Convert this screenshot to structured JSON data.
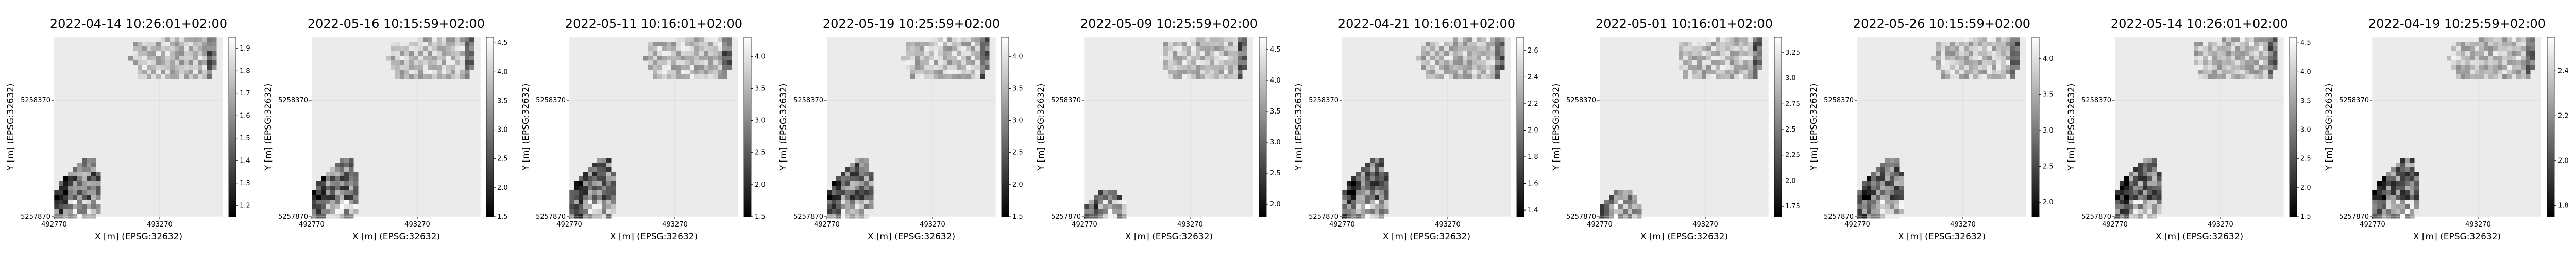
{
  "figure": {
    "colors": {
      "axes_face": "#ebebeb",
      "grid": "#d8d8d8",
      "axis_line": "#000000",
      "text": "#000000"
    },
    "colormap": "greys_r",
    "axis_xlabel": "X [m] (EPSG:32632)",
    "axis_ylabel": "Y [m] (EPSG:32632)",
    "xtick_labels": [
      "492770",
      "493270"
    ],
    "ytick_labels": [
      "5257870",
      "5258370"
    ]
  },
  "chart_data": [
    {
      "type": "heatmap",
      "title": "2022-04-14 10:26:01+02:00",
      "xlabel": "X [m] (EPSG:32632)",
      "ylabel": "Y [m] (EPSG:32632)",
      "xticks": [
        492770,
        493270
      ],
      "yticks": [
        5257870,
        5258370
      ],
      "colorbar_range": [
        1.15,
        1.95
      ],
      "colorbar_ticks": [
        1.2,
        1.3,
        1.4,
        1.5,
        1.6,
        1.7,
        1.8,
        1.9
      ]
    },
    {
      "type": "heatmap",
      "title": "2022-05-16 10:15:59+02:00",
      "xlabel": "X [m] (EPSG:32632)",
      "ylabel": "Y [m] (EPSG:32632)",
      "xticks": [
        492770,
        493270
      ],
      "yticks": [
        5257870,
        5258370
      ],
      "colorbar_range": [
        1.5,
        4.6
      ],
      "colorbar_ticks": [
        1.5,
        2.0,
        2.5,
        3.0,
        3.5,
        4.0,
        4.5
      ]
    },
    {
      "type": "heatmap",
      "title": "2022-05-11 10:16:01+02:00",
      "xlabel": "X [m] (EPSG:32632)",
      "ylabel": "Y [m] (EPSG:32632)",
      "xticks": [
        492770,
        493270
      ],
      "yticks": [
        5257870,
        5258370
      ],
      "colorbar_range": [
        1.5,
        4.3
      ],
      "colorbar_ticks": [
        1.5,
        2.0,
        2.5,
        3.0,
        3.5,
        4.0
      ]
    },
    {
      "type": "heatmap",
      "title": "2022-05-19 10:25:59+02:00",
      "xlabel": "X [m] (EPSG:32632)",
      "ylabel": "Y [m] (EPSG:32632)",
      "xticks": [
        492770,
        493270
      ],
      "yticks": [
        5257870,
        5258370
      ],
      "colorbar_range": [
        1.5,
        4.3
      ],
      "colorbar_ticks": [
        1.5,
        2.0,
        2.5,
        3.0,
        3.5,
        4.0
      ]
    },
    {
      "type": "heatmap",
      "title": "2022-05-09 10:25:59+02:00",
      "xlabel": "X [m] (EPSG:32632)",
      "ylabel": "Y [m] (EPSG:32632)",
      "xticks": [
        492770,
        493270
      ],
      "yticks": [
        5257870,
        5258370
      ],
      "colorbar_range": [
        1.8,
        4.7
      ],
      "colorbar_ticks": [
        2.0,
        2.5,
        3.0,
        3.5,
        4.0,
        4.5
      ]
    },
    {
      "type": "heatmap",
      "title": "2022-04-21 10:16:01+02:00",
      "xlabel": "X [m] (EPSG:32632)",
      "ylabel": "Y [m] (EPSG:32632)",
      "xticks": [
        492770,
        493270
      ],
      "yticks": [
        5257870,
        5258370
      ],
      "colorbar_range": [
        1.35,
        2.7
      ],
      "colorbar_ticks": [
        1.4,
        1.6,
        1.8,
        2.0,
        2.2,
        2.4,
        2.6
      ]
    },
    {
      "type": "heatmap",
      "title": "2022-05-01 10:16:01+02:00",
      "xlabel": "X [m] (EPSG:32632)",
      "ylabel": "Y [m] (EPSG:32632)",
      "xticks": [
        492770,
        493270
      ],
      "yticks": [
        5257870,
        5258370
      ],
      "colorbar_range": [
        1.65,
        3.4
      ],
      "colorbar_ticks": [
        1.75,
        2.0,
        2.25,
        2.5,
        2.75,
        3.0,
        3.25
      ]
    },
    {
      "type": "heatmap",
      "title": "2022-05-26 10:15:59+02:00",
      "xlabel": "X [m] (EPSG:32632)",
      "ylabel": "Y [m] (EPSG:32632)",
      "xticks": [
        492770,
        493270
      ],
      "yticks": [
        5257870,
        5258370
      ],
      "colorbar_range": [
        1.8,
        4.3
      ],
      "colorbar_ticks": [
        2.0,
        2.5,
        3.0,
        3.5,
        4.0
      ]
    },
    {
      "type": "heatmap",
      "title": "2022-05-14 10:26:01+02:00",
      "xlabel": "X [m] (EPSG:32632)",
      "ylabel": "Y [m] (EPSG:32632)",
      "xticks": [
        492770,
        493270
      ],
      "yticks": [
        5257870,
        5258370
      ],
      "colorbar_range": [
        1.5,
        4.6
      ],
      "colorbar_ticks": [
        1.5,
        2.0,
        2.5,
        3.0,
        3.5,
        4.0,
        4.5
      ]
    },
    {
      "type": "heatmap",
      "title": "2022-04-19 10:25:59+02:00",
      "xlabel": "X [m] (EPSG:32632)",
      "ylabel": "Y [m] (EPSG:32632)",
      "xticks": [
        492770,
        493270
      ],
      "yticks": [
        5257870,
        5258370
      ],
      "colorbar_range": [
        1.75,
        2.55
      ],
      "colorbar_ticks": [
        1.8,
        2.0,
        2.2,
        2.4
      ]
    }
  ]
}
